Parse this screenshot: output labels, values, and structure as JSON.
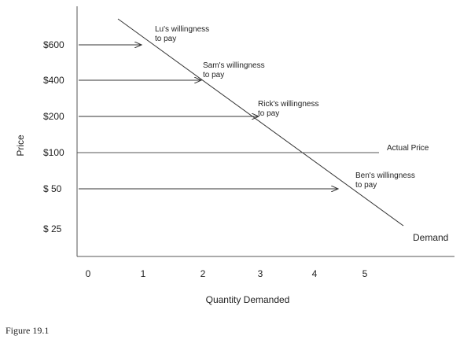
{
  "caption": "Figure 19.1",
  "chart_data": {
    "type": "line",
    "xlabel": "Quantity Demanded",
    "ylabel": "Price",
    "x_ticks": [
      "0",
      "1",
      "2",
      "3",
      "4",
      "5"
    ],
    "y_ticks": [
      "$600",
      "$400",
      "$200",
      "$100",
      "$ 50",
      "$ 25"
    ],
    "series": [
      {
        "name": "Demand",
        "points": [
          [
            0.5,
            "above $600"
          ],
          [
            5.4,
            "below $25"
          ]
        ]
      }
    ],
    "actual_price": {
      "label": "Actual Price",
      "value": 100
    },
    "willingness": [
      {
        "lines": [
          "Lu's willingness",
          "to pay"
        ],
        "price": 600,
        "quantity": 1
      },
      {
        "lines": [
          "Sam's willingness",
          "to pay"
        ],
        "price": 400,
        "quantity": 2
      },
      {
        "lines": [
          "Rick's willingness",
          "to pay"
        ],
        "price": 200,
        "quantity": 3
      },
      {
        "lines": [
          "Ben's willingness",
          "to pay"
        ],
        "price": 50,
        "quantity": 4.5
      }
    ]
  }
}
